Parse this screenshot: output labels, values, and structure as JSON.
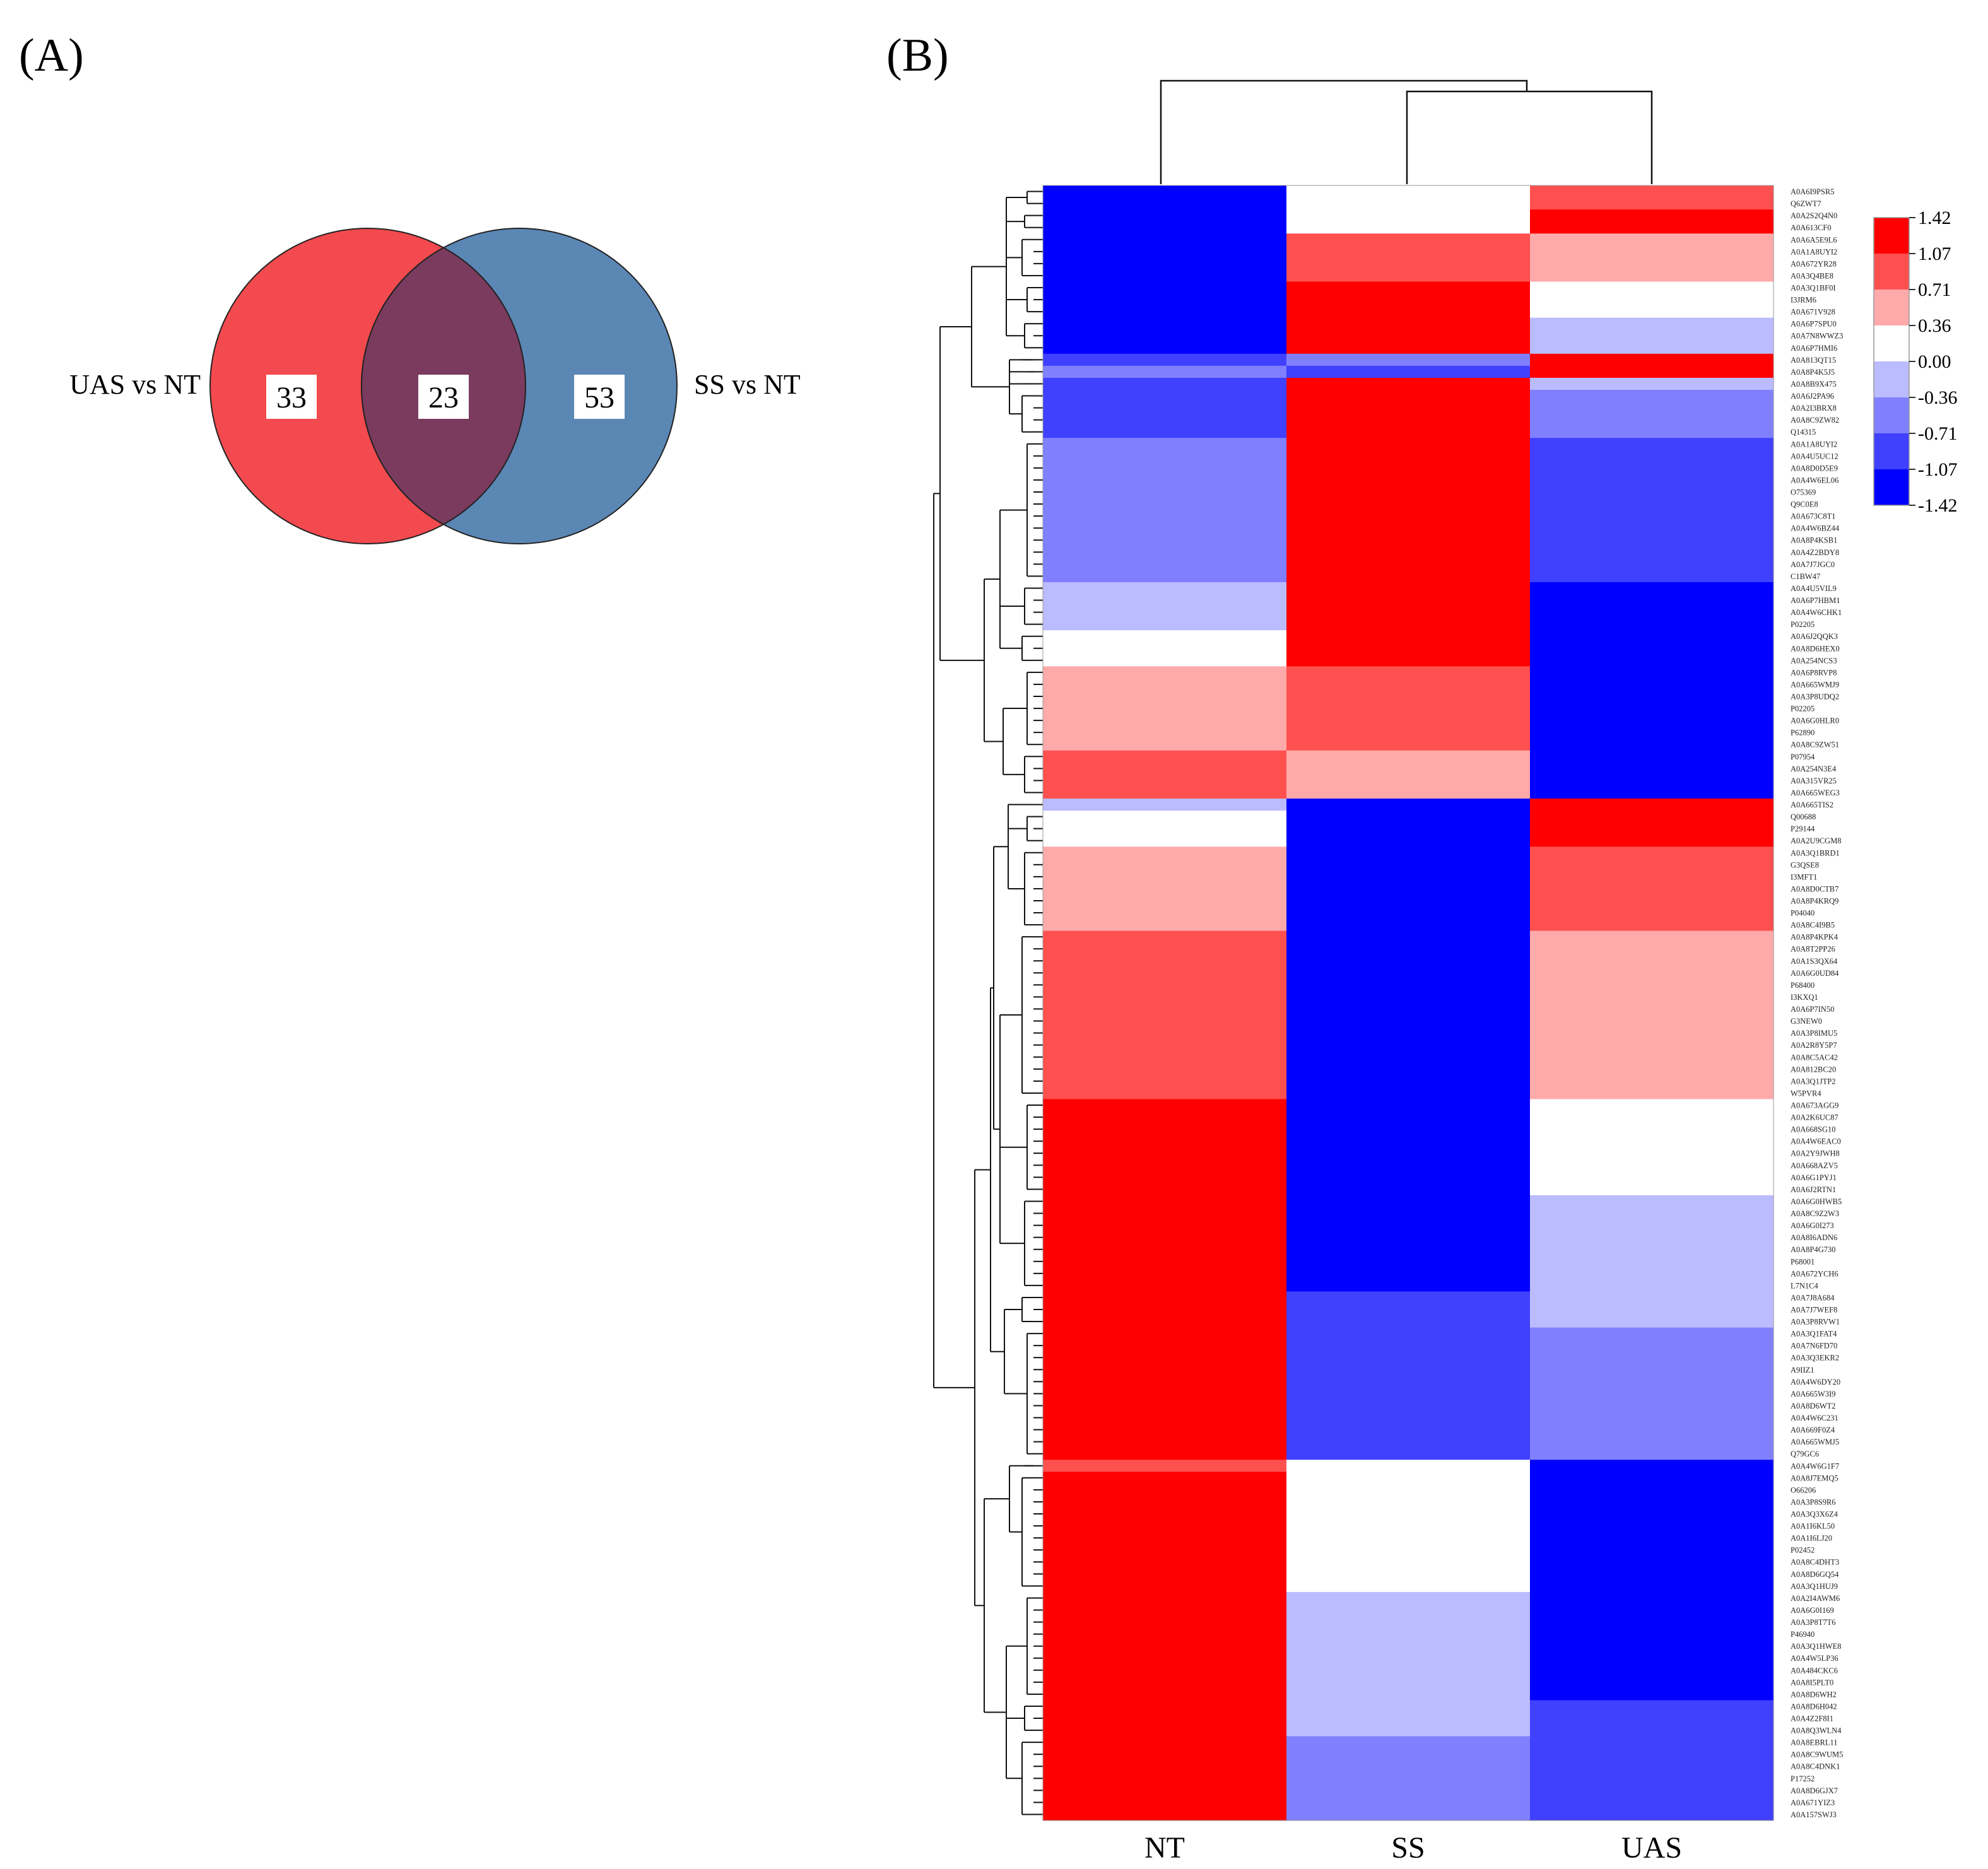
{
  "panel_a": {
    "label": "(A)",
    "venn": {
      "left_label": "UAS vs NT",
      "right_label": "SS vs NT",
      "left_only": "33",
      "overlap": "23",
      "right_only": "53",
      "left_color": "#f24a4e",
      "right_color": "#5b87b5",
      "overlap_color": "#7a3b5e"
    }
  },
  "panel_b": {
    "label": "(B)",
    "columns": [
      "NT",
      "SS",
      "UAS"
    ],
    "legend": {
      "ticks": [
        "1.42",
        "1.07",
        "0.71",
        "0.36",
        "0.00",
        "-0.36",
        "-0.71",
        "-1.07",
        "-1.42"
      ],
      "colors": [
        "#ff0000",
        "#ff5050",
        "#ffaaaa",
        "#ffffff",
        "#bbbbff",
        "#8080ff",
        "#4040ff",
        "#0000ff"
      ]
    },
    "row_labels": [
      "A0A6I9PSR5",
      "Q6ZWT7",
      "A0A2S2Q4N0",
      "A0A613CF0",
      "A0A6A5E9L6",
      "A0A1A8UYI2",
      "A0A672YR28",
      "A0A3Q4BE8",
      "A0A3Q1BF0I",
      "I3JRM6",
      "A0A671V928",
      "A0A6P7SPU0",
      "A0A7N8WWZ3",
      "A0A6P7HMI6",
      "A0A813QT15",
      "A0A8P4K5J5",
      "A0A8B9X475",
      "A0A6J2PA96",
      "A0A2I3BRX8",
      "A0A8C9ZW82",
      "Q14315",
      "A0A1A8UYI2",
      "A0A4U5UC12",
      "A0A8D0D5E9",
      "A0A4W6EL06",
      "O75369",
      "Q9C0E8",
      "A0A673C8T1",
      "A0A4W6BZ44",
      "A0A8P4KSB1",
      "A0A4Z2BDY8",
      "A0A7J7JGC0",
      "C1BW47",
      "A0A4U5VIL9",
      "A0A6P7HBM1",
      "A0A4W6CHK1",
      "P02205",
      "A0A6J2QQK3",
      "A0A8D6HEX0",
      "A0A254NCS3",
      "A0A6P8RVP8",
      "A0A665WMJ9",
      "A0A3P8UDQ2",
      "P02205",
      "A0A6G0HLR0",
      "P62890",
      "A0A8C9ZW51",
      "P07954",
      "A0A254N3E4",
      "A0A315VR25",
      "A0A665WEG3",
      "A0A665TIS2",
      "Q00688",
      "P29144",
      "A0A2U9CGM8",
      "A0A3Q1BRD1",
      "G3QSE8",
      "I3MFT1",
      "A0A8D0CTB7",
      "A0A8P4KRQ9",
      "P04040",
      "A0A8C4I9B5",
      "A0A8P4KPK4",
      "A0A8T2PP26",
      "A0A1S3QX64",
      "A0A6G0UD84",
      "P68400",
      "I3KXQ1",
      "A0A6P7IN50",
      "G3NEW0",
      "A0A3P8IMU5",
      "A0A2R8Y5P7",
      "A0A8C5AC42",
      "A0A812BC20",
      "A0A3Q1JTP2",
      "W5PVR4",
      "A0A673AGG9",
      "A0A2K6UC87",
      "A0A668SG10",
      "A0A4W6EAC0",
      "A0A2Y9JWH8",
      "A0A668AZV5",
      "A0A6G1PYJ1",
      "A0A6J2RTN1",
      "A0A6G0HWB5",
      "A0A8C9Z2W3",
      "A0A6G0I273",
      "A0A8I6ADN6",
      "A0A8P4G730",
      "P68001",
      "A0A672YCH6",
      "L7N1C4",
      "A0A7J8A684",
      "A0A7J7WEF8",
      "A0A3P8RVW1",
      "A0A3Q1FAT4",
      "A0A7N6FD70",
      "A0A3Q3EKR2",
      "A9IIZ1",
      "A0A4W6DY20",
      "A0A665W3I9",
      "A0A8D6WT2",
      "A0A4W6C231",
      "A0A669F0Z4",
      "A0A665WMJ5",
      "Q79GC6",
      "A0A4W6G1F7",
      "A0A8J7EMQ5",
      "O66206",
      "A0A3P8S9R6",
      "A0A3Q3X6Z4",
      "A0A1I6KL50",
      "A0A1I6LJ20",
      "P02452",
      "A0A8C4DHT3",
      "A0A8D6GQ54",
      "A0A3Q1HUJ9",
      "A0A2I4AWM6",
      "A0A6G0I169",
      "A0A3P8T7T6",
      "P46940",
      "A0A3Q1HWE8",
      "A0A4W5LP36",
      "A0A484CKC6",
      "A0A8I5PLT0",
      "A0A8D6WH2",
      "A0A8D6H042",
      "A0A4Z2F8I1",
      "A0A8Q3WLN4",
      "A0A8EBRL11",
      "A0A8C9WUM5",
      "A0A8C4DNK1",
      "P17252",
      "A0A8D6GJX7",
      "A0A671YIZ3",
      "A0A157SWJ3"
    ],
    "blocks": [
      {
        "rows": [
          0,
          1
        ],
        "values": [
          -1.42,
          0.0,
          1.07
        ]
      },
      {
        "rows": [
          2,
          3
        ],
        "values": [
          -1.42,
          0.0,
          1.42
        ]
      },
      {
        "rows": [
          4,
          7
        ],
        "values": [
          -1.42,
          1.07,
          0.71
        ]
      },
      {
        "rows": [
          8,
          10
        ],
        "values": [
          -1.42,
          1.42,
          0.0
        ]
      },
      {
        "rows": [
          11,
          13
        ],
        "values": [
          -1.42,
          1.42,
          -0.36
        ]
      },
      {
        "rows": [
          14,
          14
        ],
        "values": [
          -1.07,
          -0.71,
          1.42
        ]
      },
      {
        "rows": [
          15,
          15
        ],
        "values": [
          -0.71,
          -1.07,
          1.42
        ]
      },
      {
        "rows": [
          16,
          16
        ],
        "values": [
          -1.07,
          1.42,
          -0.36
        ]
      },
      {
        "rows": [
          17,
          20
        ],
        "values": [
          -1.07,
          1.42,
          -0.71
        ]
      },
      {
        "rows": [
          21,
          32
        ],
        "values": [
          -0.71,
          1.42,
          -1.07
        ]
      },
      {
        "rows": [
          33,
          36
        ],
        "values": [
          -0.36,
          1.42,
          -1.42
        ]
      },
      {
        "rows": [
          37,
          39
        ],
        "values": [
          0.0,
          1.42,
          -1.42
        ]
      },
      {
        "rows": [
          40,
          46
        ],
        "values": [
          0.71,
          1.07,
          -1.42
        ]
      },
      {
        "rows": [
          47,
          50
        ],
        "values": [
          1.07,
          0.71,
          -1.42
        ]
      },
      {
        "rows": [
          51,
          51
        ],
        "values": [
          -0.36,
          -1.42,
          1.42
        ]
      },
      {
        "rows": [
          52,
          54
        ],
        "values": [
          0.0,
          -1.42,
          1.42
        ]
      },
      {
        "rows": [
          55,
          61
        ],
        "values": [
          0.71,
          -1.42,
          1.07
        ]
      },
      {
        "rows": [
          62,
          75
        ],
        "values": [
          1.07,
          -1.42,
          0.71
        ]
      },
      {
        "rows": [
          76,
          83
        ],
        "values": [
          1.42,
          -1.42,
          0.0
        ]
      },
      {
        "rows": [
          84,
          91
        ],
        "values": [
          1.42,
          -1.42,
          -0.36
        ]
      },
      {
        "rows": [
          92,
          94
        ],
        "values": [
          1.42,
          -1.07,
          -0.36
        ]
      },
      {
        "rows": [
          95,
          105
        ],
        "values": [
          1.42,
          -1.07,
          -0.71
        ]
      },
      {
        "rows": [
          106,
          106
        ],
        "values": [
          1.07,
          0.0,
          -1.42
        ]
      },
      {
        "rows": [
          107,
          116
        ],
        "values": [
          1.42,
          0.0,
          -1.42
        ]
      },
      {
        "rows": [
          117,
          125
        ],
        "values": [
          1.42,
          -0.36,
          -1.42
        ]
      },
      {
        "rows": [
          126,
          128
        ],
        "values": [
          1.42,
          -0.36,
          -1.07
        ]
      },
      {
        "rows": [
          129,
          135
        ],
        "values": [
          1.42,
          -0.71,
          -1.07
        ]
      }
    ]
  },
  "chart_data": {
    "type": "heatmap",
    "title": "",
    "xlabel": "",
    "ylabel": "",
    "x": [
      "NT",
      "SS",
      "UAS"
    ],
    "color_range": [
      -1.42,
      1.42
    ],
    "color_scale": [
      "-1.42",
      "-1.07",
      "-0.71",
      "-0.36",
      "0.00",
      "0.36",
      "0.71",
      "1.07",
      "1.42"
    ],
    "row_count": 136,
    "dendrogram": "rows and columns clustered; columns: NT | (SS, UAS)"
  }
}
